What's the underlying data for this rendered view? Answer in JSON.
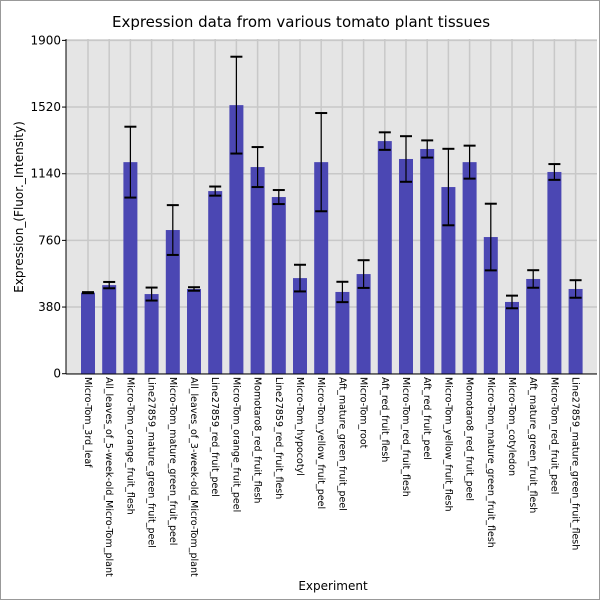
{
  "chart_data": {
    "type": "bar",
    "title": "Expression data from various tomato plant tissues",
    "xlabel": "Experiment",
    "ylabel": "Expression_(Fluor._Intensity)",
    "ylim": [
      0,
      1900
    ],
    "yticks": [
      "0",
      "380",
      "760",
      "1140",
      "1520",
      "1900"
    ],
    "ytick_values": [
      0,
      380,
      760,
      1140,
      1520,
      1900
    ],
    "grid": true,
    "bar_color": "#4b47b3",
    "categories": [
      "Micro-Tom_3rd_leaf",
      "All_leaves_of_5-week-old_Micro-Tom_plant",
      "Micro-Tom_orange_fruit_flesh",
      "Line27859_mature_green_fruit_peel",
      "Micro-Tom_mature_green_fruit_peel",
      "All_leaves_of_3-week-old_Micro-Tom_plant",
      "Line27859_red_fruit_peel",
      "Micro-Tom_orange_fruit_peel",
      "Momotaro8_red_fruit_flesh",
      "Line27859_red_fruit_flesh",
      "Micro-Tom_hypocotyl",
      "Micro-Tom_yellow_fruit_peel",
      "Aft_mature_green_fruit_peel",
      "Micro-Tom_root",
      "Aft_red_fruit_flesh",
      "Micro-Tom_red_fruit_flesh",
      "Aft_red_fruit_peel",
      "Micro-Tom_yellow_fruit_flesh",
      "Momotaro8_red_fruit_peel",
      "Micro-Tom_mature_green_fruit_flesh",
      "Micro-Tom_cotyledon",
      "Aft_mature_green_fruit_flesh",
      "Micro-Tom_red_fruit_peel",
      "Line27859_mature_green_fruit_flesh"
    ],
    "values": [
      462,
      505,
      1206,
      454,
      819,
      483,
      1041,
      1531,
      1178,
      1007,
      545,
      1206,
      466,
      568,
      1326,
      1224,
      1281,
      1064,
      1206,
      779,
      409,
      540,
      1150,
      483
    ],
    "errors": [
      3,
      18,
      202,
      37,
      142,
      10,
      26,
      276,
      114,
      40,
      76,
      280,
      58,
      79,
      50,
      130,
      49,
      218,
      94,
      190,
      36,
      50,
      45,
      50
    ]
  }
}
